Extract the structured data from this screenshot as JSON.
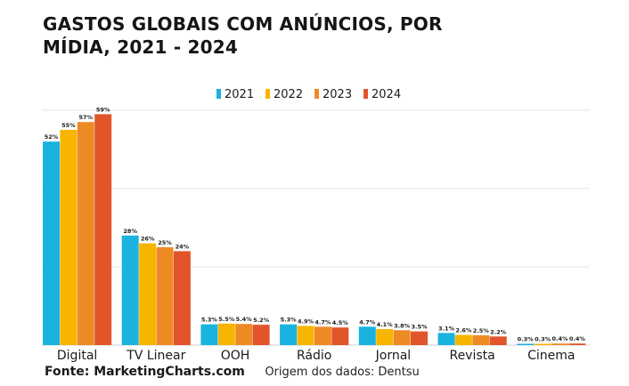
{
  "chart_data": {
    "type": "bar",
    "title": "GASTOS GLOBAIS COM ANÚNCIOS, POR MÍDIA, 2021 - 2024",
    "categories": [
      "Digital",
      "TV Linear",
      "OOH",
      "Rádio",
      "Jornal",
      "Revista",
      "Cinema"
    ],
    "series": [
      {
        "name": "2021",
        "color": "#1ab3e0",
        "values": [
          52,
          28,
          5.3,
          5.3,
          4.7,
          3.1,
          0.3
        ]
      },
      {
        "name": "2022",
        "color": "#f7b500",
        "values": [
          55,
          26,
          5.5,
          4.9,
          4.1,
          2.6,
          0.3
        ]
      },
      {
        "name": "2023",
        "color": "#ee8a24",
        "values": [
          57,
          25,
          5.4,
          4.7,
          3.8,
          2.5,
          0.4
        ]
      },
      {
        "name": "2024",
        "color": "#e2552b",
        "values": [
          59,
          24,
          5.2,
          4.5,
          3.5,
          2.2,
          0.4
        ]
      }
    ],
    "value_labels": [
      [
        "52%",
        "28%",
        "5.3%",
        "5.3%",
        "4.7%",
        "3.1%",
        "0.3%"
      ],
      [
        "55%",
        "26%",
        "5.5%",
        "4.9%",
        "4.1%",
        "2.6%",
        "0.3%"
      ],
      [
        "57%",
        "25%",
        "5.4%",
        "4.7%",
        "3.8%",
        "2.5%",
        "0.4%"
      ],
      [
        "59%",
        "24%",
        "5.2%",
        "4.5%",
        "3.5%",
        "2.2%",
        "0.4%"
      ]
    ],
    "ylim": [
      0,
      60
    ],
    "grid": true,
    "legend": "top"
  },
  "footer": {
    "source": "Fonte: MarketingCharts.com",
    "origin": "Origem dos dados: Dentsu"
  }
}
